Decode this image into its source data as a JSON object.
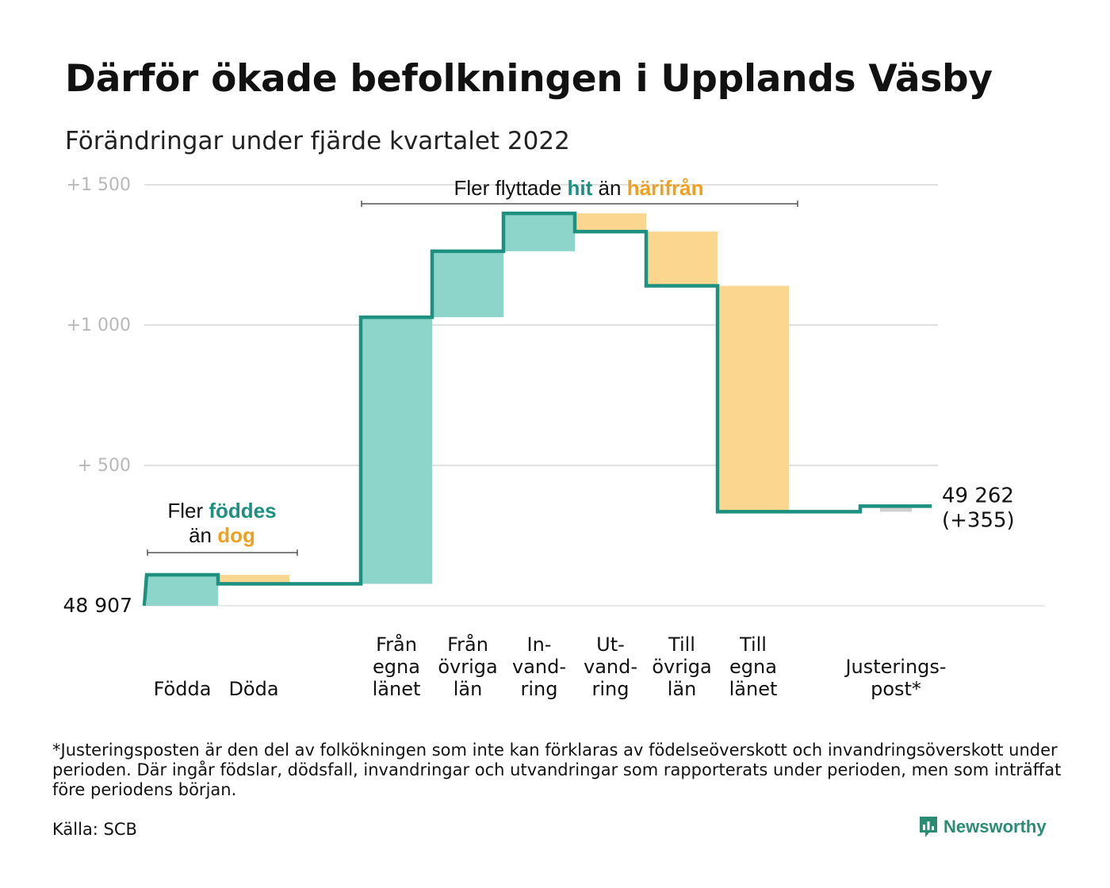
{
  "header": {
    "title": "Därför ökade befolkningen i Upplands Väsby",
    "subtitle": "Förändringar under fjärde kvartalet 2022"
  },
  "annotations": {
    "births": {
      "line1_prefix": "Fler ",
      "line1_highlight": "föddes",
      "line2_prefix": "än ",
      "line2_highlight": "dog"
    },
    "moves": {
      "prefix": "Fler flyttade ",
      "highlight1": "hit",
      "middle": " än ",
      "highlight2": "härifrån"
    }
  },
  "colors": {
    "increase": "#8dd5cb",
    "decrease": "#fbd68f",
    "adjustment": "#cfcfcf",
    "step_line": "#1e9080",
    "highlight_teal": "#1e9080",
    "highlight_orange": "#f0a020",
    "gridline": "#e0e0e0",
    "tick_label": "#b8b8b8"
  },
  "chart_data": {
    "type": "waterfall",
    "title": "Därför ökade befolkningen i Upplands Väsby",
    "subtitle": "Förändringar under fjärde kvartalet 2022",
    "base_value": 48907,
    "base_label": "48 907",
    "end_value": 49262,
    "end_label": "49 262",
    "end_change_label": "(+355)",
    "y_ticks": [
      {
        "value": 500,
        "label": "+ 500"
      },
      {
        "value": 1000,
        "label": "+1 000"
      },
      {
        "value": 1500,
        "label": "+1 500"
      }
    ],
    "ylim": [
      0,
      1500
    ],
    "categories": [
      {
        "lines": [
          "Födda"
        ],
        "change": 110,
        "kind": "increase"
      },
      {
        "lines": [
          "Döda"
        ],
        "change": -32,
        "kind": "decrease"
      },
      {
        "lines": [],
        "change": 0,
        "kind": "gap"
      },
      {
        "lines": [
          "Från",
          "egna",
          "länet"
        ],
        "change": 950,
        "kind": "increase"
      },
      {
        "lines": [
          "Från",
          "övriga",
          "län"
        ],
        "change": 235,
        "kind": "increase"
      },
      {
        "lines": [
          "In-",
          "vand-",
          "ring"
        ],
        "change": 135,
        "kind": "increase"
      },
      {
        "lines": [
          "Ut-",
          "vand-",
          "ring"
        ],
        "change": -65,
        "kind": "decrease"
      },
      {
        "lines": [
          "Till",
          "övriga",
          "län"
        ],
        "change": -193,
        "kind": "decrease"
      },
      {
        "lines": [
          "Till",
          "egna",
          "länet"
        ],
        "change": -805,
        "kind": "decrease"
      },
      {
        "lines": [],
        "change": 0,
        "kind": "gap"
      },
      {
        "lines": [
          "Justerings-",
          "post*"
        ],
        "change": 20,
        "kind": "adjustment"
      }
    ]
  },
  "footer": {
    "footnote": "*Justeringsposten är den del av folkökningen som inte kan förklaras av födelseöverskott och invandringsöverskott under perioden. Där ingår födslar, dödsfall, invandringar och utvandringar som rapporterats under perioden, men som inträffat före periodens början.",
    "source": "Källa: SCB",
    "brand": "Newsworthy"
  }
}
